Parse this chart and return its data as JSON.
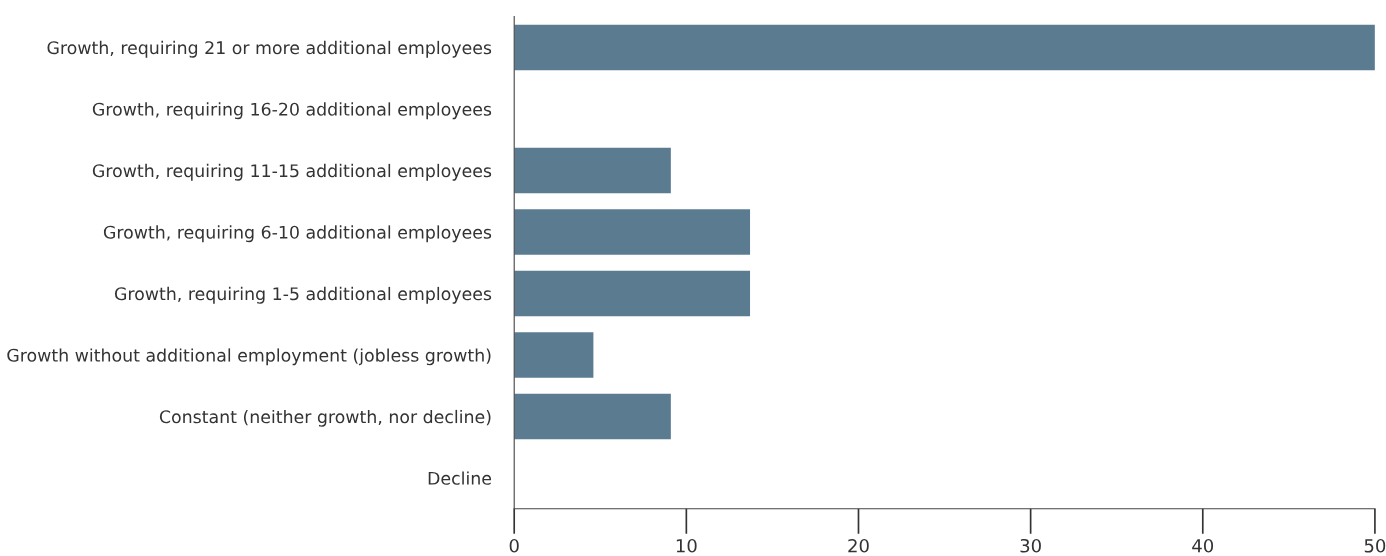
{
  "chart_data": {
    "type": "bar",
    "orientation": "horizontal",
    "categories": [
      "Growth, requiring 21 or more additional employees",
      "Growth, requiring 16-20 additional employees",
      "Growth, requiring 11-15 additional employees",
      "Growth, requiring 6-10 additional employees",
      "Growth, requiring 1-5 additional employees",
      "Growth without additional employment (jobless growth)",
      "Constant (neither growth, nor decline)",
      "Decline"
    ],
    "values": [
      50,
      0,
      9.1,
      13.7,
      13.7,
      4.6,
      9.1,
      0
    ],
    "color": "#5b7c90",
    "xlim": [
      0,
      50
    ],
    "xticks": [
      0,
      10,
      20,
      30,
      40,
      50
    ],
    "grid": false,
    "legend": false
  }
}
